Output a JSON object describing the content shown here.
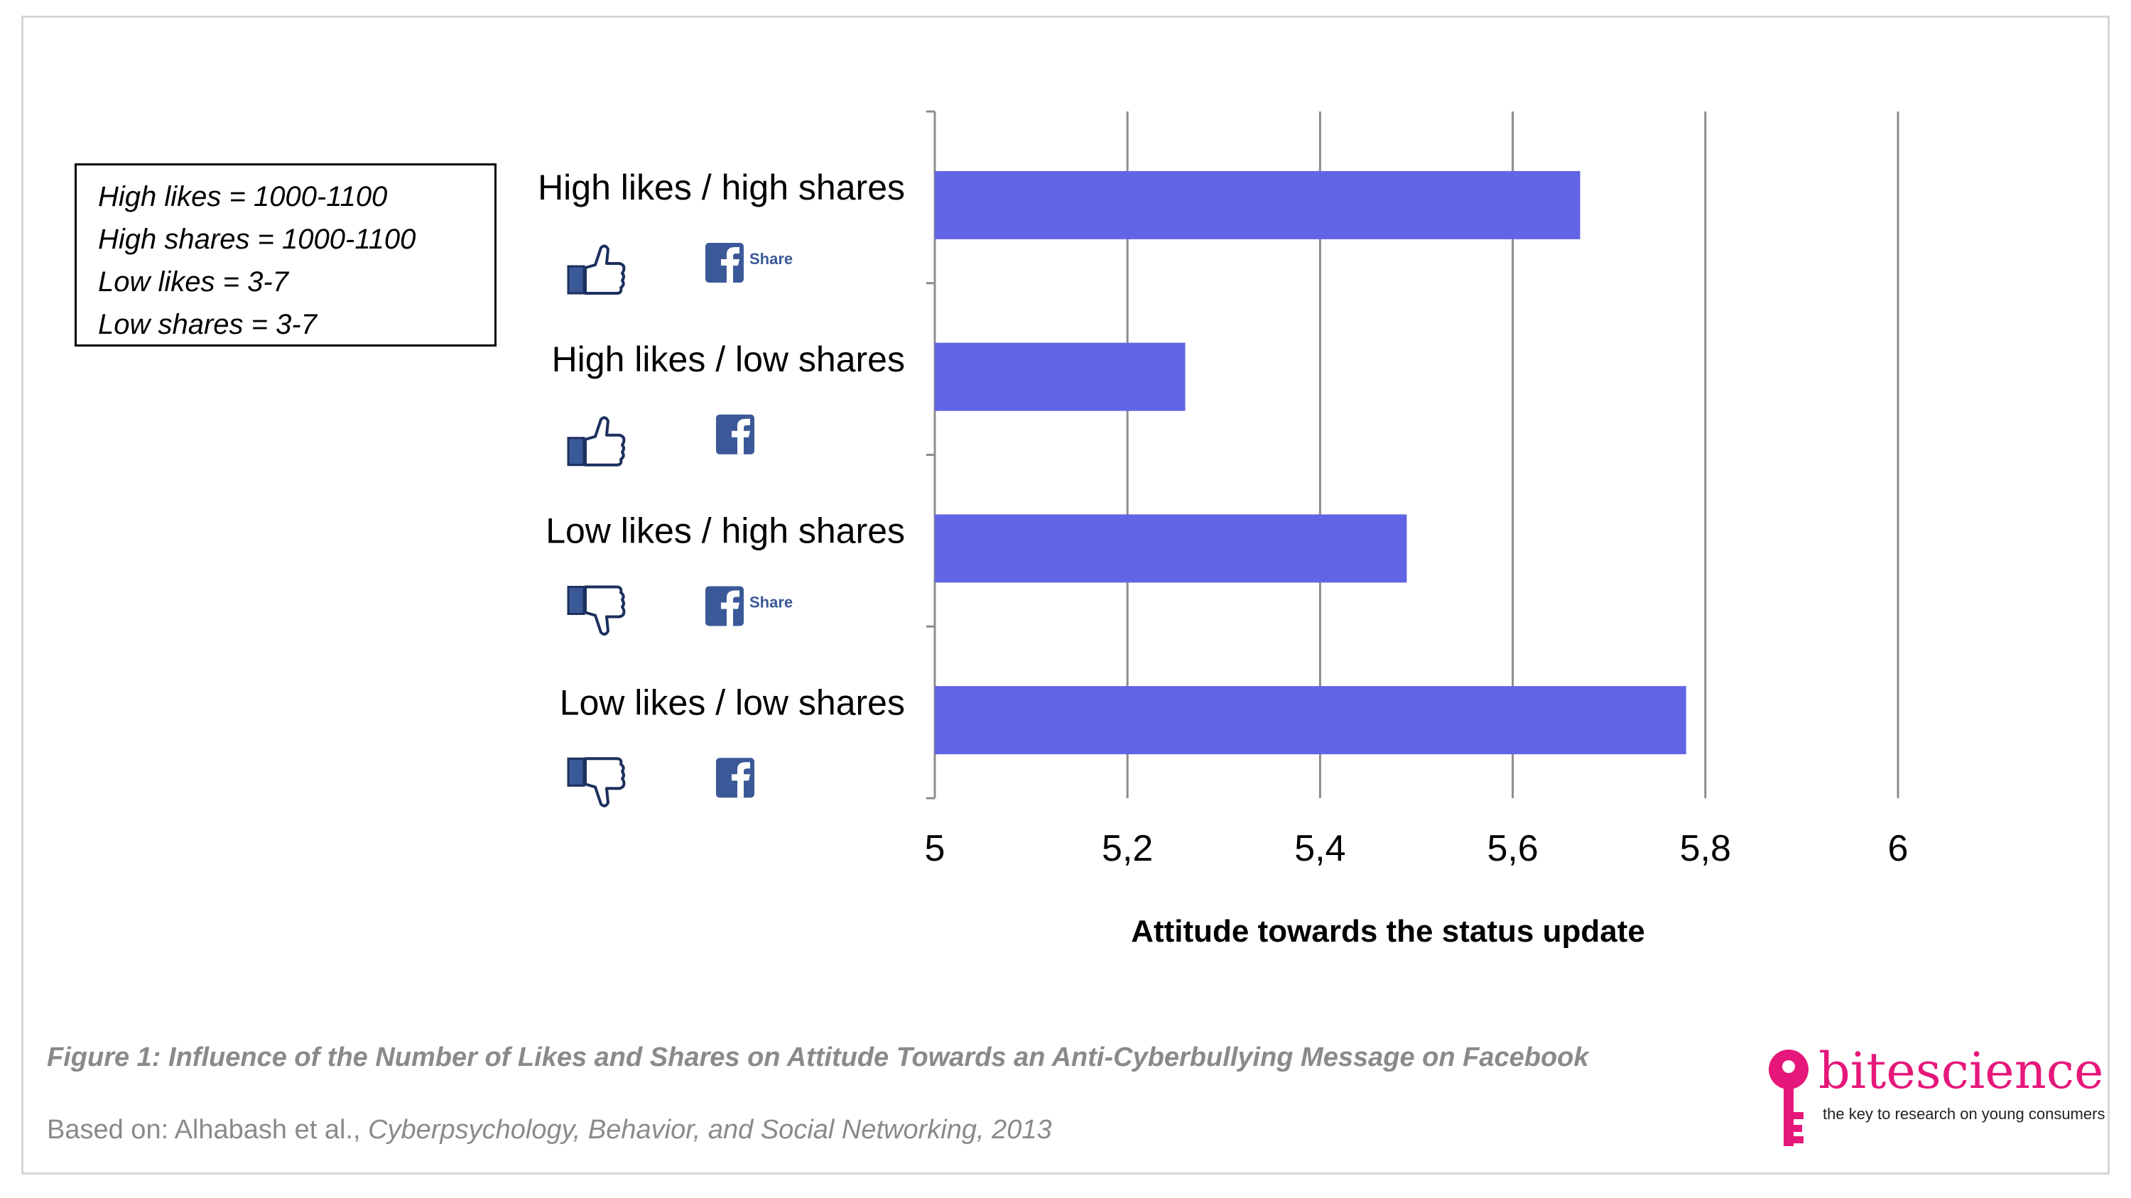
{
  "legend_notes": [
    "High likes = 1000-1100",
    "High shares = 1000-1100",
    "Low likes = 3-7",
    "Low shares = 3-7"
  ],
  "chart_data": {
    "type": "bar",
    "orientation": "horizontal",
    "categories": [
      "High likes / high shares",
      "High likes / low shares",
      "Low likes / high shares",
      "Low likes / low shares"
    ],
    "values": [
      5.67,
      5.26,
      5.49,
      5.78
    ],
    "category_icons": [
      {
        "like": "thumbs-up-icon",
        "share": "facebook-share-icon",
        "share_label": "Share"
      },
      {
        "like": "thumbs-up-icon",
        "share": "facebook-icon",
        "share_label": ""
      },
      {
        "like": "thumbs-down-icon",
        "share": "facebook-share-icon",
        "share_label": "Share"
      },
      {
        "like": "thumbs-down-icon",
        "share": "facebook-icon",
        "share_label": ""
      }
    ],
    "xlim": [
      5,
      6
    ],
    "x_ticks": [
      "5",
      "5,2",
      "5,4",
      "5,6",
      "5,8",
      "6"
    ],
    "xlabel": "Attitude towards the status update",
    "grid": true,
    "bar_color": "#6264e6"
  },
  "caption": "Figure 1: Influence of the Number of Likes and Shares on Attitude Towards an Anti-Cyberbullying Message on Facebook",
  "source": {
    "prefix": "Based on: Alhabash et al., ",
    "journal": "Cyberpsychology, Behavior, and Social Networking, 2013"
  },
  "brand": {
    "name": "bitescience",
    "tagline": "the key to research on young consumers",
    "color": "#e6177a"
  }
}
